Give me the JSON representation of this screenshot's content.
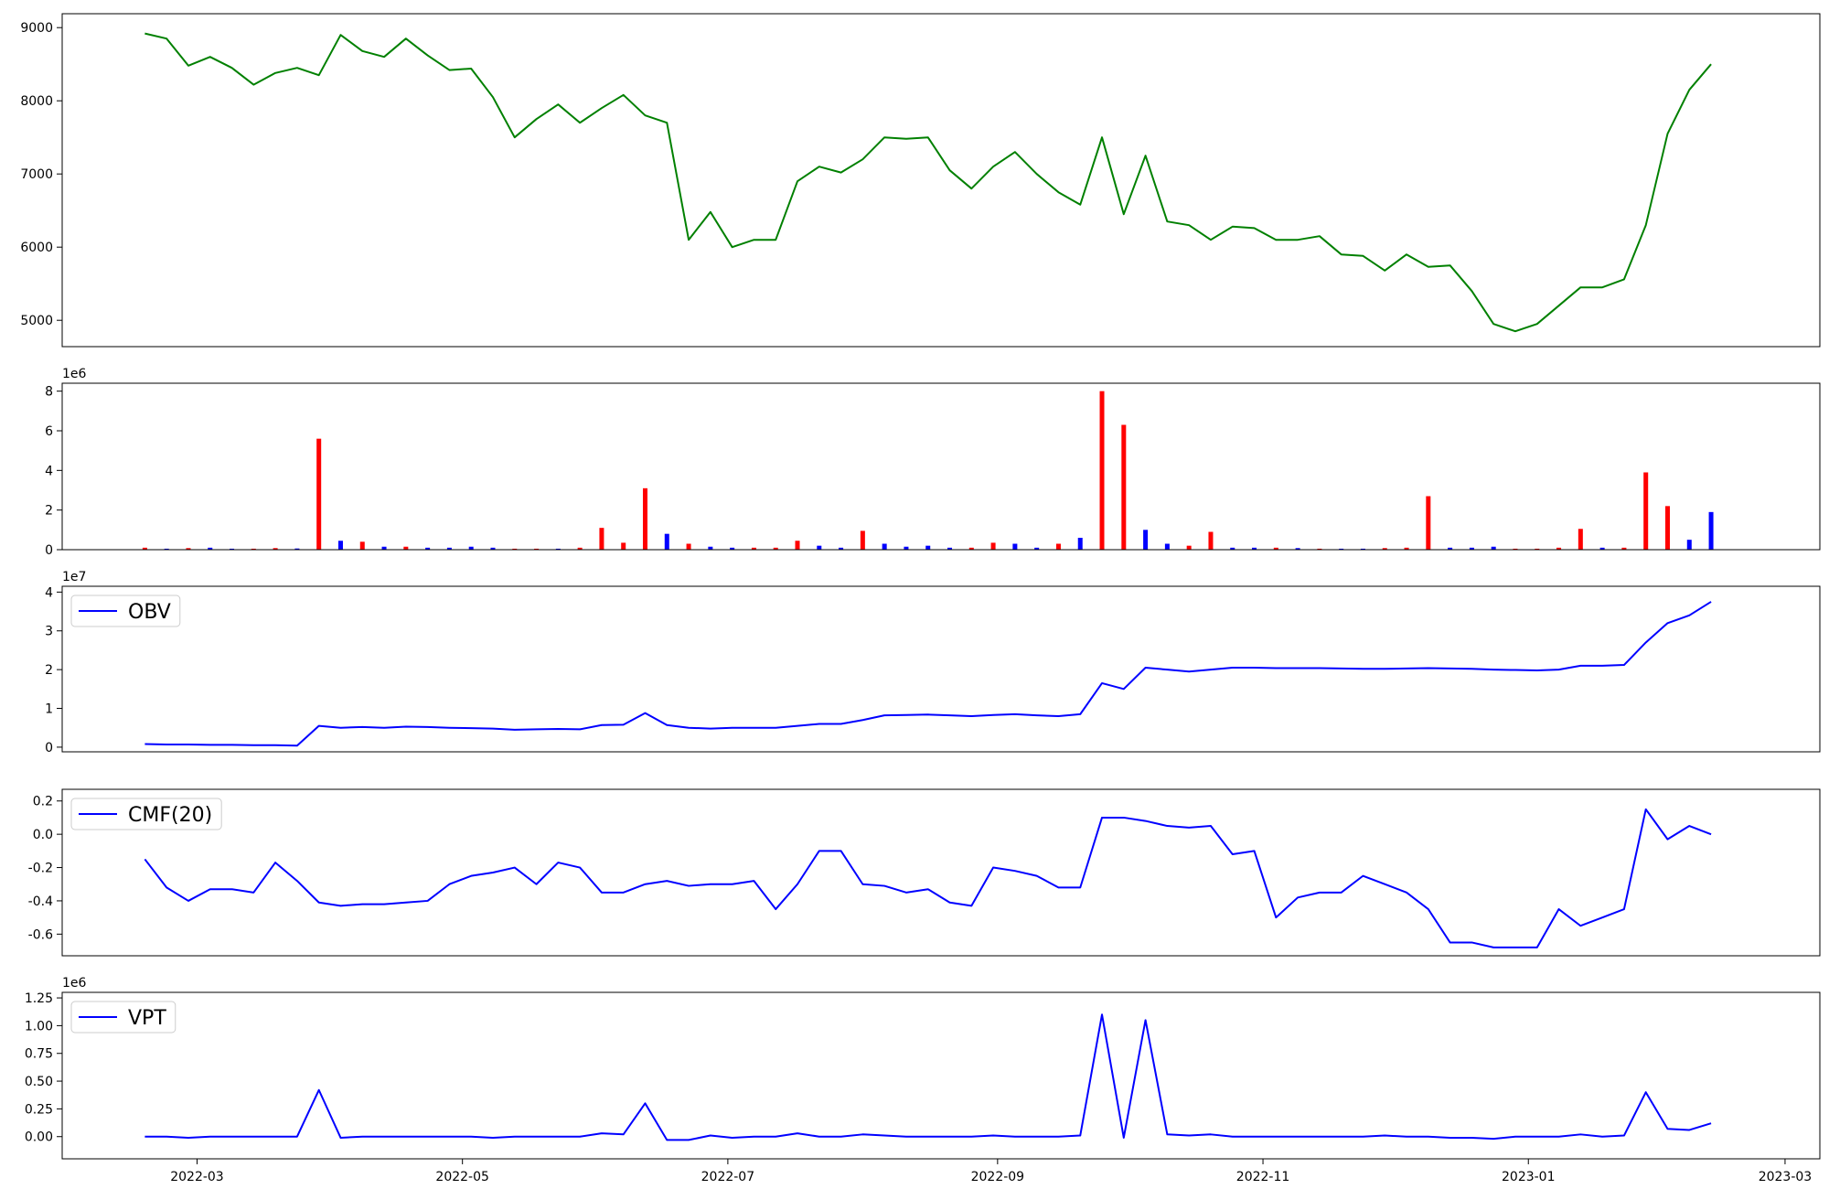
{
  "chart_data": [
    {
      "type": "line",
      "color": "#008000",
      "x": [
        19040,
        19045,
        19050,
        19055,
        19060,
        19065,
        19070,
        19075,
        19080,
        19085,
        19090,
        19095,
        19100,
        19105,
        19110,
        19115,
        19120,
        19125,
        19130,
        19135,
        19140,
        19145,
        19150,
        19155,
        19160,
        19165,
        19170,
        19175,
        19180,
        19185,
        19190,
        19195,
        19200,
        19205,
        19210,
        19215,
        19220,
        19225,
        19230,
        19235,
        19240,
        19245,
        19250,
        19255,
        19260,
        19265,
        19270,
        19275,
        19280,
        19285,
        19290,
        19295,
        19300,
        19305,
        19310,
        19315,
        19320,
        19325,
        19330,
        19335,
        19340,
        19345,
        19350,
        19355,
        19360,
        19365,
        19370,
        19375,
        19380,
        19385,
        19390,
        19395,
        19400
      ],
      "values": [
        8920,
        8850,
        8480,
        8600,
        8450,
        8220,
        8380,
        8450,
        8350,
        8900,
        8680,
        8600,
        8850,
        8620,
        8420,
        8440,
        8050,
        7500,
        7750,
        7950,
        7700,
        7900,
        8080,
        7800,
        7700,
        6100,
        6480,
        6000,
        6100,
        6100,
        6900,
        7100,
        7020,
        7200,
        7500,
        7480,
        7500,
        7050,
        6800,
        7100,
        7300,
        7000,
        6750,
        6580,
        7500,
        6450,
        7250,
        6350,
        6300,
        6100,
        6280,
        6260,
        6100,
        6100,
        6150,
        5900,
        5880,
        5680,
        5900,
        5730,
        5750,
        5400,
        4950,
        4850,
        4950,
        5200,
        5450,
        5450,
        5560,
        6300,
        7550,
        8150,
        8500
      ],
      "xlim": [
        19021,
        19425
      ],
      "ylim": [
        4640,
        9190
      ],
      "yticks": [
        5000,
        6000,
        7000,
        8000,
        9000
      ]
    },
    {
      "type": "bar",
      "offset_label": "1e6",
      "x": [
        19040,
        19045,
        19050,
        19055,
        19060,
        19065,
        19070,
        19075,
        19080,
        19085,
        19090,
        19095,
        19100,
        19105,
        19110,
        19115,
        19120,
        19125,
        19130,
        19135,
        19140,
        19145,
        19150,
        19155,
        19160,
        19165,
        19170,
        19175,
        19180,
        19185,
        19190,
        19195,
        19200,
        19205,
        19210,
        19215,
        19220,
        19225,
        19230,
        19235,
        19240,
        19245,
        19250,
        19255,
        19260,
        19265,
        19270,
        19275,
        19280,
        19285,
        19290,
        19295,
        19300,
        19305,
        19310,
        19315,
        19320,
        19325,
        19330,
        19335,
        19340,
        19345,
        19350,
        19355,
        19360,
        19365,
        19370,
        19375,
        19380,
        19385,
        19390,
        19395,
        19400
      ],
      "values": [
        0.1,
        0.05,
        0.08,
        0.1,
        0.05,
        0.05,
        0.08,
        0.06,
        5.6,
        0.45,
        0.4,
        0.15,
        0.15,
        0.1,
        0.1,
        0.15,
        0.1,
        0.05,
        0.05,
        0.05,
        0.1,
        1.1,
        0.35,
        3.1,
        0.8,
        0.3,
        0.15,
        0.1,
        0.1,
        0.1,
        0.45,
        0.2,
        0.1,
        0.95,
        0.3,
        0.15,
        0.2,
        0.1,
        0.1,
        0.35,
        0.3,
        0.1,
        0.3,
        0.6,
        8.0,
        6.3,
        1.0,
        0.3,
        0.2,
        0.9,
        0.1,
        0.1,
        0.1,
        0.08,
        0.05,
        0.05,
        0.05,
        0.08,
        0.1,
        2.7,
        0.1,
        0.1,
        0.15,
        0.05,
        0.05,
        0.1,
        1.05,
        0.1,
        0.1,
        3.9,
        2.2,
        0.5,
        1.9
      ],
      "colors": [
        "red",
        "blue",
        "red",
        "blue",
        "blue",
        "red",
        "red",
        "blue",
        "red",
        "blue",
        "red",
        "blue",
        "red",
        "blue",
        "blue",
        "blue",
        "blue",
        "red",
        "red",
        "blue",
        "red",
        "red",
        "red",
        "red",
        "blue",
        "red",
        "blue",
        "blue",
        "red",
        "red",
        "red",
        "blue",
        "blue",
        "red",
        "blue",
        "blue",
        "blue",
        "blue",
        "red",
        "red",
        "blue",
        "blue",
        "red",
        "blue",
        "red",
        "red",
        "blue",
        "blue",
        "red",
        "red",
        "blue",
        "blue",
        "red",
        "blue",
        "red",
        "blue",
        "blue",
        "red",
        "red",
        "red",
        "blue",
        "blue",
        "blue",
        "red",
        "red",
        "red",
        "red",
        "blue",
        "red",
        "red",
        "red",
        "blue",
        "blue"
      ],
      "xlim": [
        19021,
        19425
      ],
      "ylim": [
        0,
        8.4
      ],
      "yticks": [
        0,
        2,
        4,
        6,
        8
      ]
    },
    {
      "type": "line",
      "offset_label": "1e7",
      "legend": "upper left",
      "x": [
        19040,
        19045,
        19050,
        19055,
        19060,
        19065,
        19070,
        19075,
        19080,
        19085,
        19090,
        19095,
        19100,
        19105,
        19110,
        19115,
        19120,
        19125,
        19130,
        19135,
        19140,
        19145,
        19150,
        19155,
        19160,
        19165,
        19170,
        19175,
        19180,
        19185,
        19190,
        19195,
        19200,
        19205,
        19210,
        19215,
        19220,
        19225,
        19230,
        19235,
        19240,
        19245,
        19250,
        19255,
        19260,
        19265,
        19270,
        19275,
        19280,
        19285,
        19290,
        19295,
        19300,
        19305,
        19310,
        19315,
        19320,
        19325,
        19330,
        19335,
        19340,
        19345,
        19350,
        19355,
        19360,
        19365,
        19370,
        19375,
        19380,
        19385,
        19390,
        19395,
        19400
      ],
      "series": [
        {
          "name": "OBV",
          "color": "#0000ff",
          "values": [
            0.08,
            0.07,
            0.07,
            0.06,
            0.06,
            0.05,
            0.05,
            0.04,
            0.55,
            0.5,
            0.52,
            0.5,
            0.53,
            0.52,
            0.5,
            0.49,
            0.48,
            0.45,
            0.46,
            0.47,
            0.46,
            0.57,
            0.58,
            0.88,
            0.57,
            0.5,
            0.48,
            0.5,
            0.5,
            0.5,
            0.55,
            0.6,
            0.6,
            0.7,
            0.82,
            0.83,
            0.84,
            0.82,
            0.8,
            0.83,
            0.85,
            0.82,
            0.8,
            0.85,
            1.65,
            1.5,
            2.05,
            2.0,
            1.95,
            2.0,
            2.05,
            2.05,
            2.04,
            2.04,
            2.04,
            2.03,
            2.02,
            2.02,
            2.03,
            2.04,
            2.03,
            2.02,
            2.0,
            1.99,
            1.98,
            2.0,
            2.1,
            2.1,
            2.12,
            2.7,
            3.2,
            3.4,
            3.75
          ]
        }
      ],
      "xlim": [
        19021,
        19425
      ],
      "ylim": [
        -0.12,
        4.15
      ],
      "yticks": [
        0,
        1,
        2,
        3,
        4
      ]
    },
    {
      "type": "line",
      "legend": "upper left",
      "x": [
        19040,
        19045,
        19050,
        19055,
        19060,
        19065,
        19070,
        19075,
        19080,
        19085,
        19090,
        19095,
        19100,
        19105,
        19110,
        19115,
        19120,
        19125,
        19130,
        19135,
        19140,
        19145,
        19150,
        19155,
        19160,
        19165,
        19170,
        19175,
        19180,
        19185,
        19190,
        19195,
        19200,
        19205,
        19210,
        19215,
        19220,
        19225,
        19230,
        19235,
        19240,
        19245,
        19250,
        19255,
        19260,
        19265,
        19270,
        19275,
        19280,
        19285,
        19290,
        19295,
        19300,
        19305,
        19310,
        19315,
        19320,
        19325,
        19330,
        19335,
        19340,
        19345,
        19350,
        19355,
        19360,
        19365,
        19370,
        19375,
        19380,
        19385,
        19390,
        19395,
        19400
      ],
      "series": [
        {
          "name": "CMF(20)",
          "color": "#0000ff",
          "values": [
            -0.15,
            -0.32,
            -0.4,
            -0.33,
            -0.33,
            -0.35,
            -0.17,
            -0.28,
            -0.41,
            -0.43,
            -0.42,
            -0.42,
            -0.41,
            -0.4,
            -0.3,
            -0.25,
            -0.23,
            -0.2,
            -0.3,
            -0.17,
            -0.2,
            -0.35,
            -0.35,
            -0.3,
            -0.28,
            -0.31,
            -0.3,
            -0.3,
            -0.28,
            -0.45,
            -0.3,
            -0.1,
            -0.1,
            -0.3,
            -0.31,
            -0.35,
            -0.33,
            -0.41,
            -0.43,
            -0.2,
            -0.22,
            -0.25,
            -0.32,
            -0.32,
            0.1,
            0.1,
            0.08,
            0.05,
            0.04,
            0.05,
            -0.12,
            -0.1,
            -0.5,
            -0.38,
            -0.35,
            -0.35,
            -0.25,
            -0.3,
            -0.35,
            -0.45,
            -0.65,
            -0.65,
            -0.68,
            -0.68,
            -0.68,
            -0.45,
            -0.55,
            -0.5,
            -0.45,
            0.15,
            -0.03,
            0.05,
            0.0
          ]
        }
      ],
      "xlim": [
        19021,
        19425
      ],
      "ylim": [
        -0.73,
        0.27
      ],
      "yticks": [
        -0.6,
        -0.4,
        -0.2,
        {
          "value": 0,
          "label": "0.0"
        },
        0.2
      ]
    },
    {
      "type": "line",
      "offset_label": "1e6",
      "legend": "upper left",
      "x": [
        19040,
        19045,
        19050,
        19055,
        19060,
        19065,
        19070,
        19075,
        19080,
        19085,
        19090,
        19095,
        19100,
        19105,
        19110,
        19115,
        19120,
        19125,
        19130,
        19135,
        19140,
        19145,
        19150,
        19155,
        19160,
        19165,
        19170,
        19175,
        19180,
        19185,
        19190,
        19195,
        19200,
        19205,
        19210,
        19215,
        19220,
        19225,
        19230,
        19235,
        19240,
        19245,
        19250,
        19255,
        19260,
        19265,
        19270,
        19275,
        19280,
        19285,
        19290,
        19295,
        19300,
        19305,
        19310,
        19315,
        19320,
        19325,
        19330,
        19335,
        19340,
        19345,
        19350,
        19355,
        19360,
        19365,
        19370,
        19375,
        19380,
        19385,
        19390,
        19395,
        19400
      ],
      "series": [
        {
          "name": "VPT",
          "color": "#0000ff",
          "values": [
            0,
            0,
            -0.01,
            0,
            0,
            0,
            0,
            0,
            0.42,
            -0.01,
            0,
            0,
            0,
            0,
            0,
            0,
            -0.01,
            0,
            0,
            0,
            0,
            0.03,
            0.02,
            0.3,
            -0.03,
            -0.03,
            0.01,
            -0.01,
            0,
            0,
            0.03,
            0,
            0,
            0.02,
            0.01,
            0,
            0,
            0,
            0,
            0.01,
            0,
            0,
            0,
            0.01,
            1.1,
            -0.01,
            1.05,
            0.02,
            0.01,
            0.02,
            0,
            0,
            0,
            0,
            0,
            0,
            0,
            0.01,
            0,
            0,
            -0.01,
            -0.01,
            -0.02,
            0,
            0,
            0,
            0.02,
            0,
            0.01,
            0.4,
            0.07,
            0.06,
            0.12
          ]
        }
      ],
      "xlim": [
        19021,
        19425
      ],
      "ylim": [
        -0.2,
        1.3
      ],
      "yticks": [
        {
          "value": 0,
          "label": "0.00"
        },
        0.25,
        {
          "value": 0.5,
          "label": "0.50"
        },
        0.75,
        {
          "value": 1,
          "label": "1.00"
        },
        1.25
      ],
      "xticks": [
        {
          "value": 19052,
          "label": "2022-03"
        },
        {
          "value": 19113,
          "label": "2022-05"
        },
        {
          "value": 19174,
          "label": "2022-07"
        },
        {
          "value": 19236,
          "label": "2022-09"
        },
        {
          "value": 19297,
          "label": "2022-11"
        },
        {
          "value": 19358,
          "label": "2023-01"
        },
        {
          "value": 19417,
          "label": "2023-03"
        }
      ]
    }
  ]
}
